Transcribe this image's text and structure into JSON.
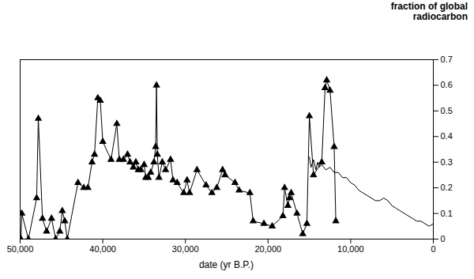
{
  "chart_data": {
    "type": "line",
    "x_label": "date (yr B.P.)",
    "y_label": "fraction of global radiocarbon",
    "xlim": [
      50000,
      0
    ],
    "xticks": [
      {
        "value": 50000,
        "label": "50,000"
      },
      {
        "value": 40000,
        "label": "40,000"
      },
      {
        "value": 30000,
        "label": "30,000"
      },
      {
        "value": 20000,
        "label": "20,000"
      },
      {
        "value": 10000,
        "label": "10,000"
      },
      0
    ],
    "ylim": [
      0,
      0.7
    ],
    "yticks": [
      0,
      0.1,
      0.2,
      0.3,
      0.4,
      0.5,
      0.6,
      0.7
    ],
    "grid": false,
    "series": [
      {
        "color": "#000000",
        "marker": "triangle",
        "line_style": "solid",
        "x": [
          49900,
          49800,
          49000,
          48000,
          47800,
          47300,
          46800,
          46200,
          45700,
          45200,
          44900,
          44600,
          44300,
          43000,
          42300,
          41800,
          41300,
          41000,
          40600,
          40300,
          40000,
          39000,
          38300,
          38000,
          37500,
          37000,
          36700,
          36300,
          36000,
          35700,
          35400,
          35000,
          34800,
          34500,
          34200,
          33800,
          33600,
          33500,
          33400,
          33200,
          32800,
          32400,
          31800,
          31500,
          31000,
          30200,
          29800,
          29500,
          28600,
          27500,
          26800,
          26200,
          25500,
          25200,
          24000,
          23500,
          22200,
          21800,
          20500,
          19500,
          18200,
          18000,
          17600,
          17400,
          17200,
          16500,
          15800,
          15300,
          15000,
          14500,
          13500,
          13100,
          12900,
          12500,
          12000,
          11800
        ],
        "values": [
          0.0,
          0.1,
          0.0,
          0.16,
          0.47,
          0.08,
          0.03,
          0.08,
          0.0,
          0.03,
          0.11,
          0.07,
          0.0,
          0.22,
          0.2,
          0.2,
          0.3,
          0.33,
          0.55,
          0.54,
          0.38,
          0.31,
          0.45,
          0.31,
          0.31,
          0.33,
          0.3,
          0.28,
          0.3,
          0.27,
          0.27,
          0.29,
          0.24,
          0.24,
          0.26,
          0.3,
          0.36,
          0.6,
          0.33,
          0.24,
          0.3,
          0.27,
          0.31,
          0.23,
          0.22,
          0.18,
          0.23,
          0.18,
          0.27,
          0.21,
          0.18,
          0.2,
          0.27,
          0.25,
          0.22,
          0.19,
          0.18,
          0.07,
          0.06,
          0.05,
          0.09,
          0.2,
          0.13,
          0.16,
          0.18,
          0.1,
          0.02,
          0.06,
          0.48,
          0.25,
          0.3,
          0.59,
          0.62,
          0.58,
          0.36,
          0.07
        ]
      },
      {
        "color": "#000000",
        "marker": "none",
        "line_style": "solid",
        "x": [
          15000,
          14800,
          14500,
          14200,
          14000,
          13800,
          13500,
          13000,
          12500,
          12000,
          11500,
          11000,
          10500,
          10000,
          9500,
          9000,
          8500,
          8000,
          7500,
          7000,
          6500,
          6000,
          5500,
          5000,
          4500,
          4000,
          3500,
          3000,
          2500,
          2000,
          1500,
          1000,
          500,
          0
        ],
        "values": [
          0.32,
          0.28,
          0.31,
          0.27,
          0.3,
          0.28,
          0.29,
          0.27,
          0.28,
          0.26,
          0.26,
          0.24,
          0.24,
          0.22,
          0.21,
          0.19,
          0.18,
          0.17,
          0.16,
          0.15,
          0.15,
          0.16,
          0.15,
          0.13,
          0.12,
          0.11,
          0.1,
          0.09,
          0.08,
          0.07,
          0.07,
          0.06,
          0.05,
          0.06
        ]
      }
    ]
  }
}
